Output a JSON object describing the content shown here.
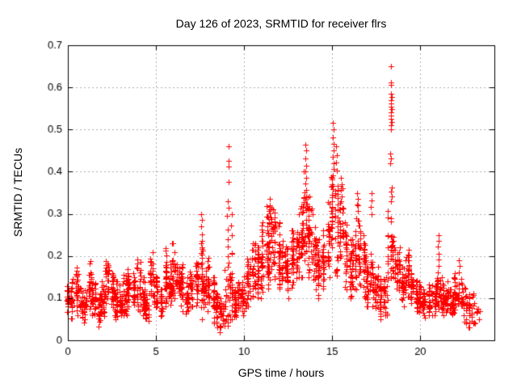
{
  "title": "Day 126 of 2023, SRMTID for receiver flrs",
  "chart_data": {
    "type": "scatter",
    "title": "Day 126 of 2023, SRMTID for receiver flrs",
    "xlabel": "GPS time / hours",
    "ylabel": "SRMTID / TECUs",
    "xlim": [
      0,
      24.2
    ],
    "ylim": [
      0,
      0.7
    ],
    "xticks": [
      0,
      5,
      10,
      15,
      20
    ],
    "xtick_labels": [
      "0",
      "5",
      "10",
      "15",
      "20"
    ],
    "yticks": [
      0,
      0.1,
      0.2,
      0.3,
      0.4,
      0.5,
      0.6,
      0.7
    ],
    "ytick_labels": [
      "0",
      "0.1",
      "0.2",
      "0.3",
      "0.4",
      "0.5",
      "0.6",
      "0.7"
    ],
    "grid": "dashed",
    "legend": "none",
    "marker": "plus",
    "marker_color": "#ff0000",
    "grid_color": "#b0b0b0",
    "axis_color": "#000000",
    "background": "#ffffff",
    "sampling_note": "dense 30s scatter summarized as band_bins [hour, y_min, y_max, n_points]; spike_points are the visible outlier columns [hour, TECUs]",
    "band_bins": [
      [
        0.0,
        0.06,
        0.14,
        22
      ],
      [
        0.25,
        0.05,
        0.15,
        26
      ],
      [
        0.5,
        0.06,
        0.18,
        26
      ],
      [
        0.75,
        0.05,
        0.13,
        26
      ],
      [
        1.0,
        0.04,
        0.12,
        26
      ],
      [
        1.25,
        0.06,
        0.19,
        28
      ],
      [
        1.5,
        0.04,
        0.16,
        26
      ],
      [
        1.75,
        0.03,
        0.11,
        24
      ],
      [
        2.0,
        0.05,
        0.14,
        26
      ],
      [
        2.25,
        0.06,
        0.19,
        28
      ],
      [
        2.5,
        0.07,
        0.17,
        26
      ],
      [
        2.75,
        0.05,
        0.14,
        26
      ],
      [
        3.0,
        0.05,
        0.13,
        26
      ],
      [
        3.25,
        0.06,
        0.18,
        28
      ],
      [
        3.5,
        0.08,
        0.19,
        28
      ],
      [
        3.75,
        0.06,
        0.16,
        26
      ],
      [
        4.0,
        0.07,
        0.2,
        28
      ],
      [
        4.25,
        0.05,
        0.15,
        26
      ],
      [
        4.5,
        0.04,
        0.12,
        24
      ],
      [
        4.75,
        0.08,
        0.21,
        28
      ],
      [
        5.0,
        0.06,
        0.16,
        26
      ],
      [
        5.25,
        0.04,
        0.13,
        24
      ],
      [
        5.5,
        0.07,
        0.22,
        28
      ],
      [
        5.75,
        0.08,
        0.18,
        26
      ],
      [
        6.0,
        0.09,
        0.23,
        28
      ],
      [
        6.25,
        0.08,
        0.19,
        26
      ],
      [
        6.5,
        0.07,
        0.2,
        26
      ],
      [
        6.75,
        0.06,
        0.15,
        24
      ],
      [
        7.0,
        0.08,
        0.18,
        26
      ],
      [
        7.25,
        0.07,
        0.2,
        26
      ],
      [
        7.5,
        0.05,
        0.24,
        26
      ],
      [
        7.75,
        0.06,
        0.17,
        26
      ],
      [
        8.0,
        0.07,
        0.2,
        26
      ],
      [
        8.25,
        0.04,
        0.15,
        24
      ],
      [
        8.5,
        0.03,
        0.12,
        24
      ],
      [
        8.75,
        0.02,
        0.1,
        24
      ],
      [
        9.0,
        0.03,
        0.2,
        22
      ],
      [
        9.25,
        0.05,
        0.22,
        22
      ],
      [
        9.5,
        0.05,
        0.13,
        24
      ],
      [
        9.75,
        0.06,
        0.15,
        26
      ],
      [
        10.0,
        0.06,
        0.16,
        26
      ],
      [
        10.25,
        0.08,
        0.2,
        26
      ],
      [
        10.5,
        0.1,
        0.25,
        26
      ],
      [
        10.75,
        0.08,
        0.22,
        26
      ],
      [
        11.0,
        0.1,
        0.28,
        28
      ],
      [
        11.25,
        0.12,
        0.32,
        28
      ],
      [
        11.5,
        0.14,
        0.33,
        28
      ],
      [
        11.75,
        0.14,
        0.31,
        28
      ],
      [
        12.0,
        0.12,
        0.28,
        30
      ],
      [
        12.25,
        0.12,
        0.25,
        30
      ],
      [
        12.5,
        0.1,
        0.22,
        28
      ],
      [
        12.75,
        0.12,
        0.26,
        30
      ],
      [
        13.0,
        0.14,
        0.3,
        30
      ],
      [
        13.25,
        0.15,
        0.33,
        30
      ],
      [
        13.5,
        0.18,
        0.4,
        28
      ],
      [
        13.75,
        0.15,
        0.35,
        30
      ],
      [
        14.0,
        0.12,
        0.3,
        30
      ],
      [
        14.25,
        0.1,
        0.24,
        28
      ],
      [
        14.5,
        0.12,
        0.26,
        30
      ],
      [
        14.75,
        0.15,
        0.33,
        30
      ],
      [
        15.0,
        0.18,
        0.4,
        28
      ],
      [
        15.25,
        0.15,
        0.38,
        28
      ],
      [
        15.5,
        0.18,
        0.36,
        28
      ],
      [
        15.75,
        0.12,
        0.28,
        28
      ],
      [
        16.0,
        0.1,
        0.24,
        28
      ],
      [
        16.25,
        0.12,
        0.3,
        28
      ],
      [
        16.5,
        0.12,
        0.32,
        28
      ],
      [
        16.75,
        0.1,
        0.25,
        26
      ],
      [
        17.0,
        0.08,
        0.2,
        26
      ],
      [
        17.25,
        0.08,
        0.22,
        24
      ],
      [
        17.5,
        0.06,
        0.18,
        24
      ],
      [
        17.75,
        0.05,
        0.15,
        24
      ],
      [
        18.0,
        0.06,
        0.16,
        24
      ],
      [
        18.25,
        0.12,
        0.32,
        24
      ],
      [
        18.5,
        0.12,
        0.27,
        26
      ],
      [
        18.75,
        0.1,
        0.22,
        26
      ],
      [
        19.0,
        0.08,
        0.18,
        26
      ],
      [
        19.25,
        0.1,
        0.21,
        26
      ],
      [
        19.5,
        0.08,
        0.16,
        26
      ],
      [
        19.75,
        0.06,
        0.15,
        26
      ],
      [
        20.0,
        0.06,
        0.14,
        26
      ],
      [
        20.25,
        0.05,
        0.13,
        26
      ],
      [
        20.5,
        0.06,
        0.14,
        26
      ],
      [
        20.75,
        0.06,
        0.13,
        26
      ],
      [
        21.0,
        0.07,
        0.16,
        26
      ],
      [
        21.25,
        0.06,
        0.15,
        26
      ],
      [
        21.5,
        0.06,
        0.14,
        26
      ],
      [
        21.75,
        0.05,
        0.13,
        26
      ],
      [
        22.0,
        0.06,
        0.16,
        24
      ],
      [
        22.25,
        0.05,
        0.15,
        22
      ],
      [
        22.5,
        0.04,
        0.13,
        18
      ],
      [
        22.75,
        0.03,
        0.12,
        16
      ],
      [
        23.0,
        0.04,
        0.12,
        14
      ],
      [
        23.25,
        0.05,
        0.1,
        8
      ]
    ],
    "spike_points": [
      [
        7.58,
        0.3
      ],
      [
        7.6,
        0.285
      ],
      [
        7.57,
        0.27
      ],
      [
        7.62,
        0.252
      ],
      [
        7.59,
        0.236
      ],
      [
        7.61,
        0.22
      ],
      [
        7.56,
        0.208
      ],
      [
        9.1,
        0.46
      ],
      [
        9.13,
        0.425
      ],
      [
        9.11,
        0.413
      ],
      [
        9.14,
        0.375
      ],
      [
        9.08,
        0.33
      ],
      [
        9.12,
        0.315
      ],
      [
        9.05,
        0.295
      ],
      [
        9.3,
        0.3
      ],
      [
        9.28,
        0.272
      ],
      [
        9.32,
        0.25
      ],
      [
        9.07,
        0.262
      ],
      [
        9.09,
        0.24
      ],
      [
        9.06,
        0.222
      ],
      [
        11.45,
        0.335
      ],
      [
        11.48,
        0.32
      ],
      [
        11.43,
        0.306
      ],
      [
        11.5,
        0.292
      ],
      [
        11.52,
        0.276
      ],
      [
        13.48,
        0.465
      ],
      [
        13.5,
        0.45
      ],
      [
        13.46,
        0.432
      ],
      [
        13.52,
        0.415
      ],
      [
        13.49,
        0.4
      ],
      [
        13.51,
        0.386
      ],
      [
        13.47,
        0.372
      ],
      [
        13.53,
        0.356
      ],
      [
        13.5,
        0.342
      ],
      [
        15.05,
        0.515
      ],
      [
        15.08,
        0.5
      ],
      [
        15.03,
        0.482
      ],
      [
        15.06,
        0.466
      ],
      [
        15.1,
        0.45
      ],
      [
        15.04,
        0.436
      ],
      [
        15.07,
        0.42
      ],
      [
        15.09,
        0.406
      ],
      [
        15.05,
        0.392
      ],
      [
        15.22,
        0.46
      ],
      [
        15.25,
        0.44
      ],
      [
        15.2,
        0.422
      ],
      [
        15.24,
        0.402
      ],
      [
        15.5,
        0.385
      ],
      [
        15.53,
        0.37
      ],
      [
        15.48,
        0.356
      ],
      [
        15.52,
        0.342
      ],
      [
        15.47,
        0.33
      ],
      [
        16.42,
        0.35
      ],
      [
        16.45,
        0.336
      ],
      [
        16.4,
        0.322
      ],
      [
        16.44,
        0.306
      ],
      [
        17.22,
        0.35
      ],
      [
        17.25,
        0.332
      ],
      [
        17.2,
        0.316
      ],
      [
        17.24,
        0.3
      ],
      [
        18.33,
        0.65
      ],
      [
        18.34,
        0.612
      ],
      [
        18.35,
        0.606
      ],
      [
        18.33,
        0.585
      ],
      [
        18.36,
        0.578
      ],
      [
        18.34,
        0.57
      ],
      [
        18.35,
        0.562
      ],
      [
        18.33,
        0.555
      ],
      [
        18.36,
        0.548
      ],
      [
        18.34,
        0.541
      ],
      [
        18.35,
        0.533
      ],
      [
        18.33,
        0.526
      ],
      [
        18.36,
        0.518
      ],
      [
        18.34,
        0.51
      ],
      [
        18.35,
        0.501
      ],
      [
        18.3,
        0.443
      ],
      [
        18.32,
        0.431
      ],
      [
        18.31,
        0.42
      ],
      [
        18.36,
        0.362
      ],
      [
        18.34,
        0.352
      ],
      [
        18.37,
        0.341
      ],
      [
        18.35,
        0.33
      ],
      [
        19.32,
        0.215
      ],
      [
        19.36,
        0.202
      ],
      [
        19.3,
        0.19
      ],
      [
        21.02,
        0.25
      ],
      [
        21.05,
        0.236
      ],
      [
        21.0,
        0.222
      ],
      [
        21.04,
        0.206
      ],
      [
        21.06,
        0.191
      ],
      [
        21.03,
        0.176
      ],
      [
        21.01,
        0.161
      ],
      [
        22.18,
        0.19
      ],
      [
        22.22,
        0.176
      ],
      [
        22.2,
        0.161
      ]
    ]
  }
}
